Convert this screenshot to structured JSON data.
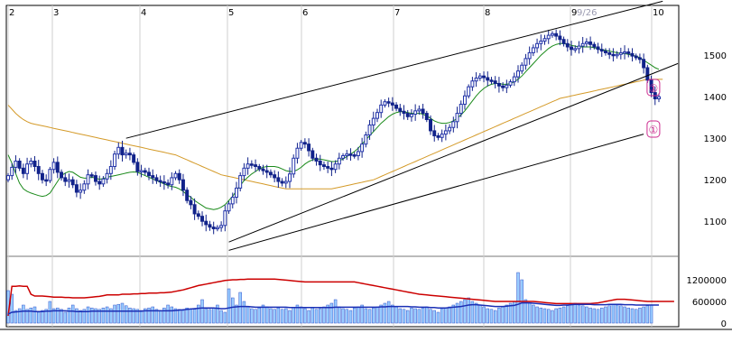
{
  "chart_data": {
    "type": "candlestick",
    "x_month_labels": [
      "2",
      "3",
      "4",
      "5",
      "6",
      "7",
      "8",
      "9",
      "10"
    ],
    "x_extra_label": "9/26",
    "price_axis": {
      "ticks": [
        "1500",
        "1400",
        "1300",
        "1200",
        "1100"
      ],
      "tick_values": [
        1500,
        1400,
        1300,
        1200,
        1100
      ],
      "range": [
        1020,
        1620
      ]
    },
    "volume_axis": {
      "ticks": [
        "1200000",
        "600000",
        "0"
      ],
      "tick_values": [
        1200000,
        600000,
        0
      ],
      "range": [
        0,
        1700000
      ]
    },
    "colors": {
      "up_candle": "#2233aa",
      "down_candle": "#11228a",
      "ma_short": "#1a8a1a",
      "ma_long": "#d49a28",
      "trend_lines": "#000000",
      "volume_bar": "#99ccff",
      "volume_bar_edge": "#3355cc",
      "volume_ma_red": "#cc0000",
      "volume_ma_blue": "#1a2fb5",
      "annotation": "#cc2a8f"
    },
    "annotations": [
      {
        "label": "①",
        "anchor_index": 166,
        "value": 1420
      },
      {
        "label": "①",
        "anchor_index": 166,
        "value": 1320
      }
    ],
    "trend_lines": [
      {
        "from": [
          31,
          1300
        ],
        "to": [
          172,
          1630
        ]
      },
      {
        "from": [
          58,
          1050
        ],
        "to": [
          176,
          1480
        ]
      },
      {
        "from": [
          58,
          1030
        ],
        "to": [
          167,
          1310
        ]
      }
    ],
    "series": [
      {
        "name": "",
        "kind": "ohlc"
      },
      {
        "name": "",
        "kind": "ma_short"
      },
      {
        "name": "",
        "kind": "ma_long"
      },
      {
        "name": "",
        "kind": "volume"
      }
    ],
    "price": [
      1210,
      1230,
      1245,
      1228,
      1215,
      1238,
      1245,
      1232,
      1215,
      1200,
      1198,
      1225,
      1242,
      1218,
      1205,
      1196,
      1200,
      1188,
      1170,
      1175,
      1190,
      1212,
      1210,
      1196,
      1190,
      1202,
      1215,
      1232,
      1262,
      1278,
      1260,
      1264,
      1260,
      1242,
      1220,
      1222,
      1218,
      1210,
      1205,
      1198,
      1195,
      1192,
      1188,
      1205,
      1215,
      1200,
      1175,
      1150,
      1140,
      1118,
      1112,
      1100,
      1092,
      1086,
      1082,
      1085,
      1090,
      1125,
      1142,
      1158,
      1180,
      1210,
      1228,
      1238,
      1236,
      1232,
      1226,
      1222,
      1218,
      1212,
      1205,
      1196,
      1192,
      1196,
      1214,
      1252,
      1276,
      1290,
      1286,
      1270,
      1252,
      1245,
      1236,
      1232,
      1228,
      1225,
      1238,
      1252,
      1258,
      1262,
      1260,
      1258,
      1268,
      1286,
      1308,
      1332,
      1348,
      1362,
      1380,
      1388,
      1385,
      1380,
      1372,
      1365,
      1360,
      1352,
      1358,
      1366,
      1370,
      1360,
      1345,
      1318,
      1306,
      1302,
      1310,
      1318,
      1326,
      1340,
      1360,
      1382,
      1402,
      1424,
      1438,
      1445,
      1450,
      1446,
      1440,
      1438,
      1432,
      1426,
      1422,
      1428,
      1436,
      1448,
      1462,
      1476,
      1492,
      1506,
      1518,
      1528,
      1534,
      1540,
      1548,
      1552,
      1546,
      1538,
      1528,
      1520,
      1514,
      1516,
      1522,
      1528,
      1532,
      1526,
      1520,
      1514,
      1510,
      1506,
      1502,
      1500,
      1502,
      1506,
      1508,
      1504,
      1498,
      1494,
      1490,
      1470,
      1440,
      1410,
      1395,
      1400
    ],
    "ma_short": [
      1260,
      1240,
      1215,
      1192,
      1178,
      1172,
      1168,
      1165,
      1162,
      1160,
      1162,
      1168,
      1182,
      1196,
      1210,
      1216,
      1220,
      1218,
      1212,
      1206,
      1204,
      1204,
      1206,
      1204,
      1201,
      1203,
      1206,
      1208,
      1210,
      1212,
      1214,
      1216,
      1218,
      1219,
      1218,
      1214,
      1210,
      1206,
      1202,
      1198,
      1194,
      1190,
      1186,
      1184,
      1182,
      1178,
      1172,
      1164,
      1158,
      1150,
      1144,
      1138,
      1132,
      1130,
      1128,
      1130,
      1134,
      1140,
      1150,
      1160,
      1174,
      1186,
      1198,
      1206,
      1214,
      1220,
      1226,
      1230,
      1232,
      1232,
      1232,
      1230,
      1226,
      1222,
      1220,
      1220,
      1224,
      1230,
      1238,
      1244,
      1248,
      1250,
      1250,
      1248,
      1246,
      1244,
      1244,
      1246,
      1250,
      1256,
      1262,
      1268,
      1276,
      1286,
      1296,
      1306,
      1316,
      1326,
      1336,
      1344,
      1352,
      1358,
      1362,
      1364,
      1364,
      1362,
      1360,
      1360,
      1360,
      1358,
      1354,
      1348,
      1342,
      1338,
      1336,
      1336,
      1338,
      1342,
      1348,
      1356,
      1366,
      1378,
      1390,
      1402,
      1412,
      1420,
      1426,
      1430,
      1432,
      1432,
      1430,
      1430,
      1432,
      1436,
      1442,
      1450,
      1460,
      1470,
      1480,
      1490,
      1500,
      1508,
      1516,
      1522,
      1526,
      1528,
      1528,
      1526,
      1524,
      1522,
      1520,
      1520,
      1520,
      1520,
      1518,
      1516,
      1514,
      1512,
      1510,
      1508,
      1506,
      1504,
      1504,
      1502,
      1500,
      1498,
      1494,
      1488,
      1482,
      1476,
      1470,
      1466
    ],
    "ma_long": [
      1380,
      1370,
      1360,
      1352,
      1345,
      1340,
      1336,
      1334,
      1332,
      1330,
      1328,
      1326,
      1324,
      1322,
      1320,
      1318,
      1316,
      1314,
      1312,
      1310,
      1308,
      1306,
      1304,
      1302,
      1300,
      1298,
      1296,
      1294,
      1292,
      1290,
      1288,
      1286,
      1284,
      1282,
      1280,
      1278,
      1276,
      1274,
      1272,
      1270,
      1268,
      1266,
      1264,
      1262,
      1260,
      1256,
      1252,
      1248,
      1244,
      1240,
      1236,
      1232,
      1228,
      1224,
      1220,
      1216,
      1212,
      1210,
      1208,
      1206,
      1204,
      1202,
      1200,
      1198,
      1196,
      1194,
      1192,
      1190,
      1188,
      1186,
      1184,
      1182,
      1180,
      1178,
      1178,
      1178,
      1178,
      1178,
      1178,
      1178,
      1178,
      1178,
      1178,
      1178,
      1178,
      1178,
      1180,
      1182,
      1184,
      1186,
      1188,
      1190,
      1192,
      1194,
      1196,
      1198,
      1200,
      1204,
      1208,
      1212,
      1216,
      1220,
      1224,
      1228,
      1232,
      1236,
      1240,
      1244,
      1248,
      1252,
      1256,
      1260,
      1264,
      1268,
      1272,
      1276,
      1280,
      1284,
      1288,
      1292,
      1296,
      1300,
      1304,
      1308,
      1312,
      1316,
      1320,
      1324,
      1328,
      1332,
      1336,
      1340,
      1344,
      1348,
      1352,
      1356,
      1360,
      1364,
      1368,
      1372,
      1376,
      1380,
      1384,
      1388,
      1392,
      1396,
      1398,
      1400,
      1402,
      1404,
      1406,
      1408,
      1410,
      1412,
      1414,
      1416,
      1418,
      1420,
      1422,
      1424,
      1426,
      1428,
      1430,
      1432,
      1434,
      1436,
      1438,
      1440,
      1442,
      1442,
      1442,
      1442,
      1442
    ],
    "volume": [
      900000,
      800000,
      350000,
      400000,
      500000,
      380000,
      420000,
      450000,
      300000,
      350000,
      380000,
      600000,
      400000,
      420000,
      380000,
      300000,
      420000,
      500000,
      400000,
      350000,
      380000,
      450000,
      420000,
      400000,
      380000,
      420000,
      450000,
      400000,
      500000,
      520000,
      550000,
      480000,
      420000,
      400000,
      380000,
      350000,
      400000,
      420000,
      450000,
      380000,
      350000,
      420000,
      500000,
      450000,
      400000,
      380000,
      350000,
      420000,
      400000,
      380000,
      500000,
      650000,
      400000,
      380000,
      420000,
      500000,
      350000,
      300000,
      950000,
      700000,
      500000,
      850000,
      600000,
      450000,
      400000,
      380000,
      420000,
      500000,
      450000,
      400000,
      380000,
      420000,
      380000,
      400000,
      350000,
      420000,
      500000,
      450000,
      400000,
      350000,
      420000,
      380000,
      400000,
      450000,
      500000,
      550000,
      650000,
      450000,
      400000,
      380000,
      350000,
      420000,
      450000,
      500000,
      400000,
      380000,
      420000,
      450000,
      500000,
      550000,
      600000,
      500000,
      450000,
      400000,
      380000,
      350000,
      420000,
      400000,
      380000,
      420000,
      450000,
      380000,
      350000,
      300000,
      400000,
      420000,
      450000,
      500000,
      550000,
      600000,
      650000,
      700000,
      600000,
      550000,
      500000,
      450000,
      400000,
      380000,
      350000,
      420000,
      450000,
      500000,
      550000,
      600000,
      1400000,
      1200000,
      650000,
      550000,
      500000,
      450000,
      420000,
      400000,
      380000,
      350000,
      400000,
      420000,
      450000,
      480000,
      520000,
      550000,
      500000,
      480000,
      450000,
      420000,
      400000,
      380000,
      420000,
      450000,
      480000,
      520000,
      500000,
      480000,
      450000,
      420000,
      400000,
      380000,
      420000,
      450000,
      480000,
      500000
    ],
    "volume_ma_red": [
      200000,
      1020000,
      1020000,
      1030000,
      1020000,
      1020000,
      800000,
      750000,
      750000,
      750000,
      740000,
      730000,
      720000,
      720000,
      720000,
      710000,
      710000,
      700000,
      700000,
      700000,
      700000,
      710000,
      720000,
      730000,
      740000,
      760000,
      780000,
      780000,
      780000,
      780000,
      800000,
      800000,
      800000,
      810000,
      810000,
      820000,
      820000,
      830000,
      830000,
      830000,
      840000,
      840000,
      850000,
      860000,
      880000,
      900000,
      920000,
      950000,
      980000,
      1010000,
      1040000,
      1060000,
      1080000,
      1100000,
      1120000,
      1140000,
      1160000,
      1180000,
      1190000,
      1200000,
      1200000,
      1210000,
      1210000,
      1220000,
      1220000,
      1220000,
      1220000,
      1220000,
      1220000,
      1220000,
      1220000,
      1210000,
      1200000,
      1190000,
      1180000,
      1170000,
      1160000,
      1150000,
      1140000,
      1140000,
      1140000,
      1140000,
      1140000,
      1140000,
      1140000,
      1140000,
      1140000,
      1140000,
      1140000,
      1140000,
      1140000,
      1140000,
      1120000,
      1100000,
      1080000,
      1060000,
      1040000,
      1020000,
      1000000,
      980000,
      960000,
      940000,
      920000,
      900000,
      880000,
      860000,
      840000,
      820000,
      800000,
      790000,
      780000,
      770000,
      760000,
      750000,
      740000,
      730000,
      720000,
      710000,
      700000,
      690000,
      680000,
      670000,
      660000,
      650000,
      640000,
      630000,
      620000,
      610000,
      600000,
      600000,
      600000,
      600000,
      600000,
      600000,
      600000,
      600000,
      600000,
      600000,
      600000,
      590000,
      580000,
      570000,
      560000,
      550000,
      540000,
      540000,
      540000,
      540000,
      540000,
      540000,
      540000,
      540000,
      540000,
      540000,
      550000,
      560000,
      580000,
      600000,
      620000,
      640000,
      660000,
      660000,
      660000,
      650000,
      640000,
      630000,
      620000,
      610000,
      600000,
      600000,
      600000,
      600000,
      600000,
      600000,
      600000,
      600000
    ],
    "volume_ma_blue": [
      250000,
      300000,
      310000,
      320000,
      330000,
      330000,
      330000,
      320000,
      320000,
      320000,
      330000,
      330000,
      340000,
      340000,
      340000,
      340000,
      330000,
      330000,
      320000,
      320000,
      320000,
      320000,
      330000,
      330000,
      330000,
      330000,
      330000,
      330000,
      330000,
      330000,
      330000,
      330000,
      330000,
      330000,
      330000,
      330000,
      340000,
      340000,
      340000,
      340000,
      340000,
      340000,
      340000,
      340000,
      350000,
      360000,
      370000,
      380000,
      390000,
      400000,
      410000,
      420000,
      420000,
      420000,
      420000,
      410000,
      400000,
      400000,
      420000,
      440000,
      450000,
      460000,
      460000,
      460000,
      450000,
      440000,
      440000,
      440000,
      440000,
      440000,
      440000,
      440000,
      440000,
      440000,
      430000,
      430000,
      430000,
      430000,
      430000,
      430000,
      430000,
      430000,
      430000,
      430000,
      430000,
      430000,
      440000,
      440000,
      440000,
      440000,
      440000,
      440000,
      440000,
      440000,
      440000,
      440000,
      440000,
      440000,
      450000,
      450000,
      460000,
      460000,
      460000,
      460000,
      460000,
      460000,
      450000,
      450000,
      440000,
      440000,
      440000,
      430000,
      430000,
      420000,
      420000,
      420000,
      430000,
      440000,
      450000,
      460000,
      480000,
      500000,
      510000,
      510000,
      500000,
      490000,
      480000,
      470000,
      460000,
      460000,
      460000,
      470000,
      480000,
      490000,
      520000,
      560000,
      560000,
      560000,
      550000,
      540000,
      530000,
      520000,
      510000,
      500000,
      490000,
      490000,
      500000,
      500000,
      510000,
      520000,
      520000,
      520000,
      520000,
      520000,
      510000,
      510000,
      510000,
      510000,
      520000,
      520000,
      520000,
      520000,
      510000,
      510000,
      510000,
      500000,
      500000,
      500000,
      500000,
      500000,
      500000,
      500000
    ]
  }
}
